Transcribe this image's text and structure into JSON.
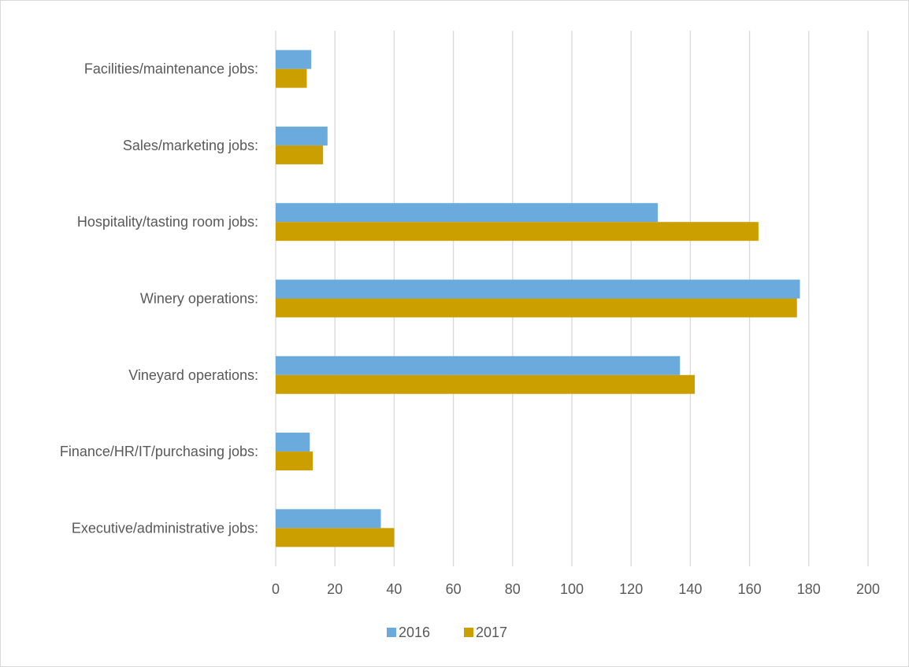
{
  "chart_data": {
    "type": "bar",
    "orientation": "horizontal",
    "categories": [
      "Facilities/maintenance jobs:",
      "Sales/marketing jobs:",
      "Hospitality/tasting room jobs:",
      "Winery operations:",
      "Vineyard operations:",
      "Finance/HR/IT/purchasing jobs:",
      "Executive/administrative jobs:"
    ],
    "series": [
      {
        "name": "2016",
        "color": "#6aaadc",
        "values": [
          12,
          17.5,
          129,
          177,
          136.5,
          11.5,
          35.5
        ]
      },
      {
        "name": "2017",
        "color": "#cc9f00",
        "values": [
          10.5,
          16,
          163,
          176,
          141.5,
          12.5,
          40
        ]
      }
    ],
    "title": "",
    "xlabel": "",
    "ylabel": "",
    "xlim": [
      0,
      200
    ],
    "xticks": [
      "0",
      "20",
      "40",
      "60",
      "80",
      "100",
      "120",
      "140",
      "160",
      "180",
      "200"
    ],
    "grid": "vertical",
    "legend_position": "bottom"
  }
}
